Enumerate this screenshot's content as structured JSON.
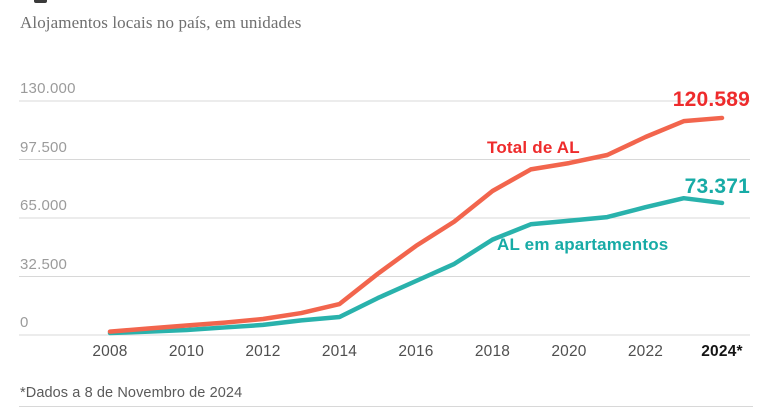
{
  "header": {
    "subtitle": "Alojamentos locais no país, em unidades"
  },
  "chart_data": {
    "type": "line",
    "title": "Alojamentos locais no país, em unidades",
    "x": [
      2008,
      2009,
      2010,
      2011,
      2012,
      2013,
      2014,
      2015,
      2016,
      2017,
      2018,
      2019,
      2020,
      2021,
      2022,
      2023,
      2024
    ],
    "series": [
      {
        "name": "AL em apartamentos",
        "color": "#29b2ac",
        "values": [
          1100,
          1900,
          2800,
          4200,
          5600,
          8100,
          10000,
          20500,
          30000,
          39500,
          53000,
          61500,
          63500,
          65500,
          71000,
          76000,
          73371
        ],
        "end_label": "73.371"
      },
      {
        "name": "Total de AL",
        "color": "#f2654d",
        "values": [
          1900,
          3600,
          5300,
          6900,
          8900,
          12200,
          17200,
          34000,
          49500,
          63000,
          80000,
          92000,
          95500,
          100000,
          110000,
          118800,
          120589
        ],
        "end_label": "120.589"
      }
    ],
    "ylim": [
      0,
      130000
    ],
    "y_ticks": [
      {
        "value": 0,
        "label": "0"
      },
      {
        "value": 32500,
        "label": "32.500"
      },
      {
        "value": 65000,
        "label": "65.000"
      },
      {
        "value": 97500,
        "label": "97.500"
      },
      {
        "value": 130000,
        "label": "130.000"
      }
    ],
    "x_ticks": [
      {
        "year": 2008,
        "label": "2008",
        "bold": false
      },
      {
        "year": 2010,
        "label": "2010",
        "bold": false
      },
      {
        "year": 2012,
        "label": "2012",
        "bold": false
      },
      {
        "year": 2014,
        "label": "2014",
        "bold": false
      },
      {
        "year": 2016,
        "label": "2016",
        "bold": false
      },
      {
        "year": 2018,
        "label": "2018",
        "bold": false
      },
      {
        "year": 2020,
        "label": "2020",
        "bold": false
      },
      {
        "year": 2022,
        "label": "2022",
        "bold": false
      },
      {
        "year": 2024,
        "label": "2024*",
        "bold": true
      }
    ],
    "grid": true,
    "legend_position": "inline-annotations",
    "annotations": {
      "total_label": "Total de AL",
      "apart_label": "AL em apartamentos",
      "total_end_value": "120.589",
      "apart_end_value": "73.371"
    }
  },
  "footer": {
    "note": "*Dados a 8 de Novembro de 2024"
  },
  "colors": {
    "total_line": "#f2654d",
    "total_text": "#ee2b2c",
    "apart_line": "#29b2ac",
    "apart_text": "#17aba6",
    "gridline": "#d8d8d8",
    "y_tick_text": "#9b9b9b",
    "x_tick_text": "#4f4f4f",
    "x_tick_bold_text": "#151515",
    "subtitle_text": "#6f6f6f",
    "footnote_text": "#5a5a5a"
  }
}
